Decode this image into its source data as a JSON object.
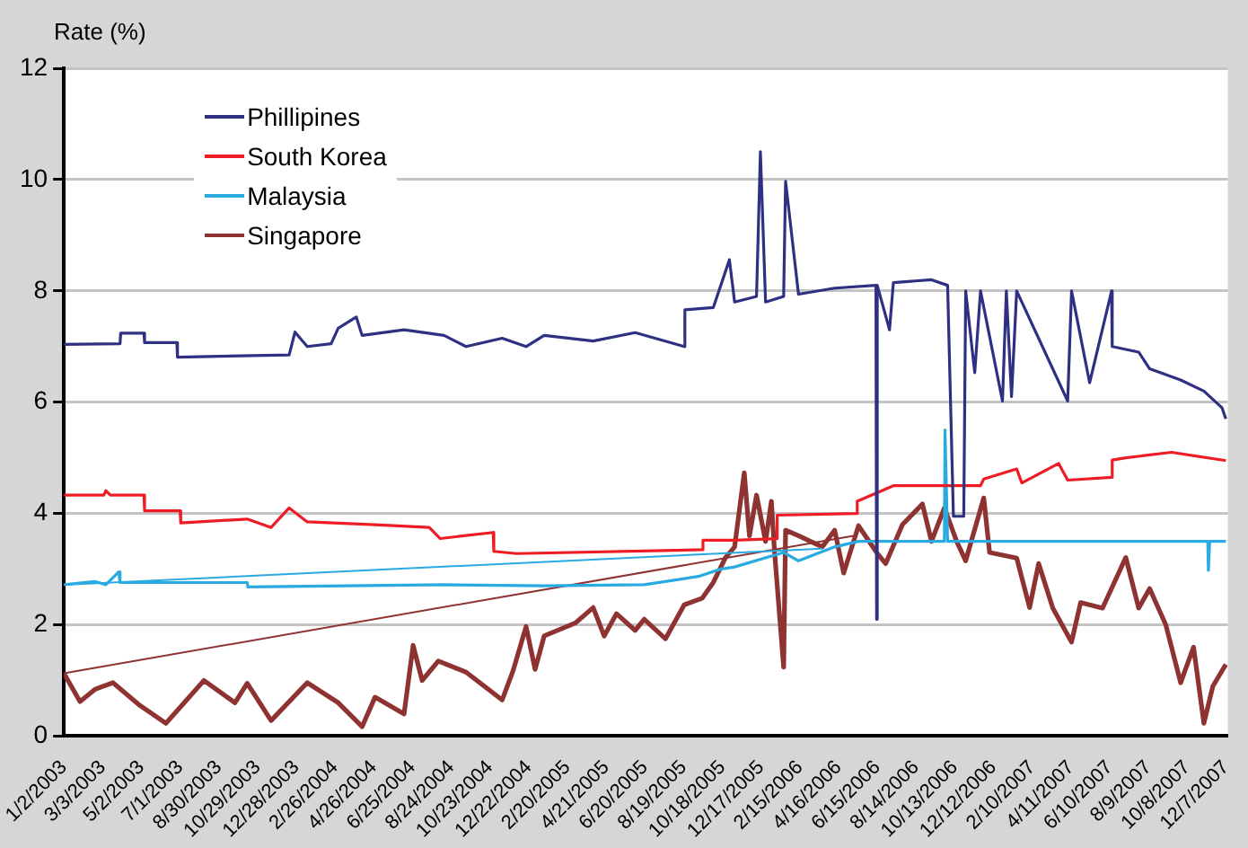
{
  "chart_data": {
    "type": "line",
    "ylabel": "Rate (%)",
    "legend": "top left",
    "grid": "y",
    "marker": "none",
    "line_style": "solid",
    "xlim": [
      "2003-01-02",
      "2007-12-10"
    ],
    "ylim": [
      0,
      12
    ],
    "yticks": [
      0,
      2,
      4,
      6,
      8,
      10,
      12
    ],
    "xticks": [
      {
        "value": "2003-01-02",
        "label": "1/2/2003"
      },
      {
        "value": "2003-03-03",
        "label": "3/3/2003"
      },
      {
        "value": "2003-05-02",
        "label": "5/2/2003"
      },
      {
        "value": "2003-07-01",
        "label": "7/1/2003"
      },
      {
        "value": "2003-08-30",
        "label": "8/30/2003"
      },
      {
        "value": "2003-10-29",
        "label": "10/29/2003"
      },
      {
        "value": "2003-12-28",
        "label": "12/28/2003"
      },
      {
        "value": "2004-02-26",
        "label": "2/26/2004"
      },
      {
        "value": "2004-04-26",
        "label": "4/26/2004"
      },
      {
        "value": "2004-06-25",
        "label": "6/25/2004"
      },
      {
        "value": "2004-08-24",
        "label": "8/24/2004"
      },
      {
        "value": "2004-10-23",
        "label": "10/23/2004"
      },
      {
        "value": "2004-12-22",
        "label": "12/22/2004"
      },
      {
        "value": "2005-02-20",
        "label": "2/20/2005"
      },
      {
        "value": "2005-04-21",
        "label": "4/21/2005"
      },
      {
        "value": "2005-06-20",
        "label": "6/20/2005"
      },
      {
        "value": "2005-08-19",
        "label": "8/19/2005"
      },
      {
        "value": "2005-10-18",
        "label": "10/18/2005"
      },
      {
        "value": "2005-12-17",
        "label": "12/17/2005"
      },
      {
        "value": "2006-02-15",
        "label": "2/15/2006"
      },
      {
        "value": "2006-04-16",
        "label": "4/16/2006"
      },
      {
        "value": "2006-06-15",
        "label": "6/15/2006"
      },
      {
        "value": "2006-08-14",
        "label": "8/14/2006"
      },
      {
        "value": "2006-10-13",
        "label": "10/13/2006"
      },
      {
        "value": "2006-12-12",
        "label": "12/12/2006"
      },
      {
        "value": "2007-02-10",
        "label": "2/10/2007"
      },
      {
        "value": "2007-04-11",
        "label": "4/11/2007"
      },
      {
        "value": "2007-06-10",
        "label": "6/10/2007"
      },
      {
        "value": "2007-08-09",
        "label": "8/9/2007"
      },
      {
        "value": "2007-10-08",
        "label": "10/8/2007"
      },
      {
        "value": "2007-12-07",
        "label": "12/7/2007"
      }
    ],
    "series": [
      {
        "name": "Phillipines",
        "color": "#2e3082",
        "x": [
          "2003-01-02",
          "2003-03-30",
          "2003-03-31",
          "2003-05-06",
          "2003-05-07",
          "2003-06-26",
          "2003-06-27",
          "2003-12-17",
          "2003-12-26",
          "2004-01-14",
          "2004-02-20",
          "2004-03-02",
          "2004-03-30",
          "2004-04-08",
          "2004-06-12",
          "2004-08-13",
          "2004-09-16",
          "2004-11-11",
          "2004-12-18",
          "2005-01-15",
          "2005-04-01",
          "2005-06-05",
          "2005-08-20",
          "2005-08-21",
          "2005-10-04",
          "2005-10-29",
          "2005-11-06",
          "2005-12-10",
          "2005-12-16",
          "2005-12-24",
          "2006-01-21",
          "2006-01-24",
          "2006-02-13",
          "2006-04-10",
          "2006-06-13",
          "2006-06-14",
          "2006-06-15",
          "2006-07-04",
          "2006-07-10",
          "2006-09-07",
          "2006-10-02",
          "2006-10-11",
          "2006-10-27",
          "2006-10-30",
          "2006-11-13",
          "2006-11-22",
          "2006-12-26",
          "2007-01-01",
          "2007-01-09",
          "2007-01-17",
          "2007-04-06",
          "2007-04-12",
          "2007-05-10",
          "2007-06-13",
          "2007-06-14",
          "2007-07-25",
          "2007-08-11",
          "2007-09-28",
          "2007-11-03",
          "2007-12-01",
          "2007-12-07"
        ],
        "values": [
          7.04,
          7.05,
          7.24,
          7.24,
          7.07,
          7.07,
          6.81,
          6.85,
          7.26,
          7.0,
          7.05,
          7.33,
          7.53,
          7.2,
          7.3,
          7.2,
          7.0,
          7.15,
          7.0,
          7.2,
          7.1,
          7.25,
          7.0,
          7.66,
          7.7,
          8.56,
          7.8,
          7.9,
          10.5,
          7.8,
          7.9,
          9.97,
          7.94,
          8.05,
          8.1,
          2.1,
          8.1,
          7.3,
          8.15,
          8.2,
          8.1,
          3.95,
          3.95,
          8.0,
          6.53,
          8.0,
          6.02,
          8.0,
          6.1,
          8.0,
          6.02,
          8.0,
          6.35,
          8.0,
          7.0,
          6.9,
          6.6,
          6.4,
          6.2,
          5.9,
          5.7
        ]
      },
      {
        "name": "South Korea",
        "color": "#ee1c25",
        "x": [
          "2003-01-02",
          "2003-03-05",
          "2003-03-08",
          "2003-03-15",
          "2003-05-06",
          "2003-05-07",
          "2003-07-01",
          "2003-07-02",
          "2003-10-13",
          "2003-11-19",
          "2003-12-17",
          "2004-01-14",
          "2004-04-28",
          "2004-07-21",
          "2004-08-07",
          "2004-10-28",
          "2004-10-29",
          "2004-12-03",
          "2005-09-17",
          "2005-09-18",
          "2005-11-06",
          "2006-01-10",
          "2006-01-11",
          "2006-05-14",
          "2006-05-15",
          "2006-07-10",
          "2006-11-22",
          "2006-11-27",
          "2007-01-17",
          "2007-01-25",
          "2007-03-23",
          "2007-04-06",
          "2007-06-13",
          "2007-06-14",
          "2007-07-05",
          "2007-09-14",
          "2007-12-07"
        ],
        "values": [
          4.33,
          4.33,
          4.41,
          4.33,
          4.33,
          4.05,
          4.05,
          3.83,
          3.9,
          3.75,
          4.1,
          3.85,
          3.8,
          3.75,
          3.55,
          3.66,
          3.32,
          3.28,
          3.35,
          3.52,
          3.52,
          3.55,
          3.97,
          4.0,
          4.22,
          4.5,
          4.5,
          4.62,
          4.8,
          4.55,
          4.9,
          4.6,
          4.65,
          4.96,
          5.0,
          5.1,
          4.95
        ]
      },
      {
        "name": "Malaysia",
        "color": "#29abe2",
        "x": [
          "2006-03-22",
          "2003-01-02",
          "2003-02-19",
          "2003-03-08",
          "2003-03-28",
          "2003-03-30",
          "2003-10-13",
          "2003-10-14",
          "2004-08-13",
          "2005-01-15",
          "2005-06-19",
          "2005-09-11",
          "2005-10-15",
          "2005-11-06",
          "2006-01-21",
          "2006-02-13",
          "2006-04-10",
          "2006-05-17",
          "2006-09-27",
          "2006-09-28",
          "2006-10-02",
          "2007-11-09",
          "2007-11-10",
          "2007-11-12",
          "2007-12-07"
        ],
        "values": [
          3.37,
          2.72,
          2.78,
          2.72,
          2.95,
          2.76,
          2.76,
          2.68,
          2.72,
          2.7,
          2.72,
          2.87,
          3.0,
          3.04,
          3.3,
          3.15,
          3.4,
          3.5,
          3.5,
          5.5,
          3.5,
          3.5,
          2.98,
          3.5,
          3.5
        ]
      },
      {
        "name": "Singapore",
        "color": "#8e3232",
        "x": [
          "2006-05-09",
          "2003-01-02",
          "2003-01-27",
          "2003-02-19",
          "2003-03-19",
          "2003-04-30",
          "2003-06-09",
          "2003-08-07",
          "2003-09-24",
          "2003-10-13",
          "2003-11-19",
          "2004-01-14",
          "2004-03-02",
          "2004-04-08",
          "2004-04-28",
          "2004-06-12",
          "2004-06-26",
          "2004-07-10",
          "2004-08-04",
          "2004-09-16",
          "2004-11-11",
          "2004-11-28",
          "2004-12-18",
          "2005-01-01",
          "2005-01-15",
          "2005-03-04",
          "2005-04-01",
          "2005-04-18",
          "2005-05-07",
          "2005-06-05",
          "2005-06-19",
          "2005-07-22",
          "2005-08-20",
          "2005-09-17",
          "2005-10-04",
          "2005-10-23",
          "2005-11-06",
          "2005-11-21",
          "2005-11-29",
          "2005-12-10",
          "2005-12-24",
          "2006-01-02",
          "2006-01-07",
          "2006-01-21",
          "2006-01-24",
          "2006-02-13",
          "2006-03-22",
          "2006-04-10",
          "2006-04-24",
          "2006-05-17",
          "2006-06-14",
          "2006-06-28",
          "2006-07-24",
          "2006-08-24",
          "2006-09-07",
          "2006-09-27",
          "2006-10-16",
          "2006-10-30",
          "2006-11-27",
          "2006-12-06",
          "2007-01-17",
          "2007-02-06",
          "2007-02-20",
          "2007-03-14",
          "2007-04-12",
          "2007-04-26",
          "2007-05-30",
          "2007-07-05",
          "2007-07-25",
          "2007-08-11",
          "2007-09-05",
          "2007-09-28",
          "2007-10-18",
          "2007-11-03",
          "2007-11-17",
          "2007-12-07"
        ],
        "values": [
          3.6,
          1.13,
          0.62,
          0.84,
          0.96,
          0.55,
          0.23,
          1.0,
          0.6,
          0.95,
          0.28,
          0.96,
          0.6,
          0.17,
          0.7,
          0.4,
          1.63,
          1.0,
          1.35,
          1.15,
          0.65,
          1.18,
          1.97,
          1.2,
          1.8,
          2.03,
          2.31,
          1.8,
          2.2,
          1.9,
          2.1,
          1.75,
          2.36,
          2.48,
          2.76,
          3.21,
          3.4,
          4.73,
          3.6,
          4.33,
          3.5,
          4.22,
          3.3,
          1.24,
          3.7,
          3.6,
          3.4,
          3.7,
          2.93,
          3.78,
          3.3,
          3.1,
          3.8,
          4.17,
          3.5,
          4.1,
          3.5,
          3.15,
          4.28,
          3.3,
          3.2,
          2.31,
          3.1,
          2.3,
          1.69,
          2.4,
          2.3,
          3.21,
          2.3,
          2.65,
          2.0,
          0.96,
          1.6,
          0.23,
          0.9,
          1.29
        ]
      }
    ]
  }
}
